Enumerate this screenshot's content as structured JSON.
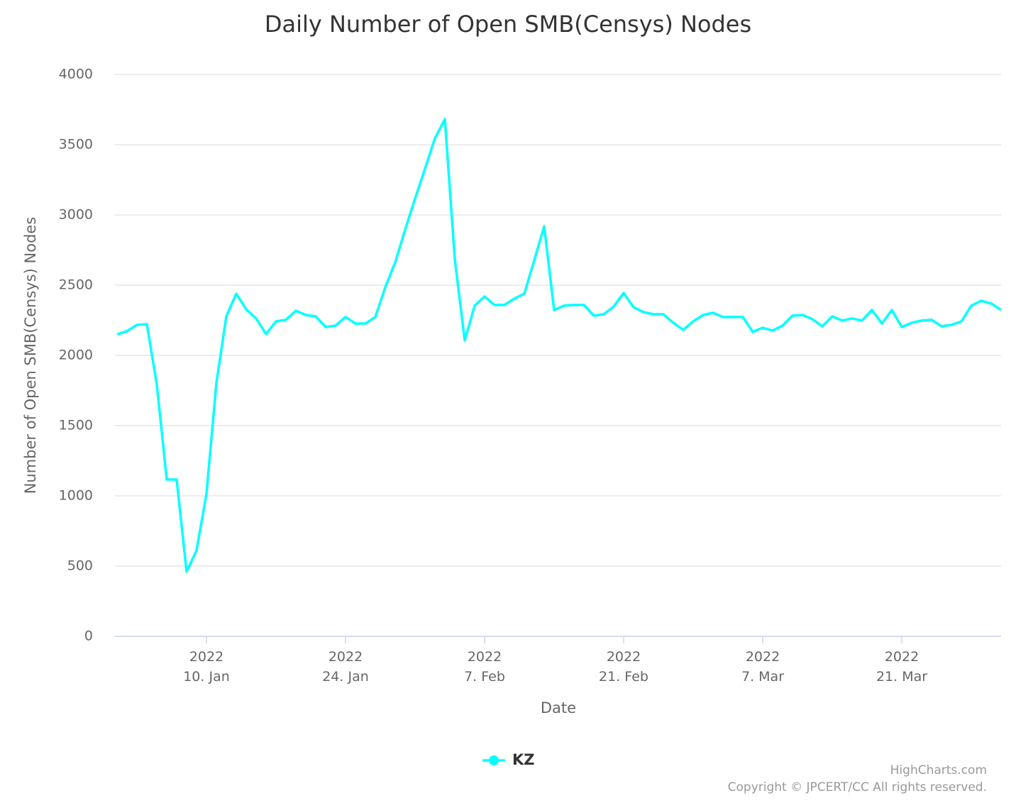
{
  "chart_data": {
    "type": "line",
    "title": "Daily Number of Open SMB(Censys) Nodes",
    "x_label": "Date",
    "y_label": "Number of Open SMB(Censys) Nodes",
    "x": [
      "2022-01-01",
      "2022-01-02",
      "2022-01-03",
      "2022-01-04",
      "2022-01-05",
      "2022-01-06",
      "2022-01-07",
      "2022-01-08",
      "2022-01-09",
      "2022-01-10",
      "2022-01-11",
      "2022-01-12",
      "2022-01-13",
      "2022-01-14",
      "2022-01-15",
      "2022-01-16",
      "2022-01-17",
      "2022-01-18",
      "2022-01-19",
      "2022-01-20",
      "2022-01-21",
      "2022-01-22",
      "2022-01-23",
      "2022-01-24",
      "2022-01-25",
      "2022-01-26",
      "2022-01-27",
      "2022-01-28",
      "2022-01-29",
      "2022-01-30",
      "2022-01-31",
      "2022-02-01",
      "2022-02-02",
      "2022-02-03",
      "2022-02-04",
      "2022-02-05",
      "2022-02-06",
      "2022-02-07",
      "2022-02-08",
      "2022-02-09",
      "2022-02-10",
      "2022-02-11",
      "2022-02-12",
      "2022-02-13",
      "2022-02-14",
      "2022-02-15",
      "2022-02-16",
      "2022-02-17",
      "2022-02-18",
      "2022-02-19",
      "2022-02-20",
      "2022-02-21",
      "2022-02-22",
      "2022-02-23",
      "2022-02-24",
      "2022-02-25",
      "2022-02-26",
      "2022-02-27",
      "2022-02-28",
      "2022-03-01",
      "2022-03-02",
      "2022-03-03",
      "2022-03-04",
      "2022-03-05",
      "2022-03-06",
      "2022-03-07",
      "2022-03-08",
      "2022-03-09",
      "2022-03-10",
      "2022-03-11",
      "2022-03-12",
      "2022-03-13",
      "2022-03-14",
      "2022-03-15",
      "2022-03-16",
      "2022-03-17",
      "2022-03-18",
      "2022-03-19",
      "2022-03-20",
      "2022-03-21",
      "2022-03-22",
      "2022-03-23",
      "2022-03-24",
      "2022-03-25",
      "2022-03-26",
      "2022-03-27",
      "2022-03-28",
      "2022-03-29",
      "2022-03-30",
      "2022-03-31"
    ],
    "series": [
      {
        "name": "KZ",
        "color": "#00ffff",
        "values": [
          2150,
          2172,
          2217,
          2222,
          1793,
          1116,
          1116,
          460,
          611,
          1015,
          1803,
          2278,
          2439,
          2328,
          2263,
          2152,
          2242,
          2253,
          2318,
          2288,
          2278,
          2202,
          2212,
          2273,
          2227,
          2227,
          2273,
          2485,
          2662,
          2894,
          3116,
          3328,
          3545,
          3682,
          2687,
          2106,
          2354,
          2419,
          2359,
          2359,
          2404,
          2439,
          2677,
          2919,
          2323,
          2354,
          2359,
          2359,
          2283,
          2293,
          2348,
          2444,
          2343,
          2308,
          2293,
          2293,
          2232,
          2182,
          2242,
          2288,
          2303,
          2273,
          2273,
          2273,
          2167,
          2197,
          2177,
          2212,
          2283,
          2288,
          2258,
          2207,
          2278,
          2248,
          2263,
          2248,
          2323,
          2227,
          2323,
          2202,
          2232,
          2248,
          2253,
          2207,
          2217,
          2242,
          2354,
          2389,
          2369,
          2323
        ]
      }
    ],
    "xlim": [
      "2022-01-01",
      "2022-03-31"
    ],
    "xticks": [
      {
        "value": "2022-01-10",
        "label": "2022\n10. Jan"
      },
      {
        "value": "2022-01-24",
        "label": "2022\n24. Jan"
      },
      {
        "value": "2022-02-07",
        "label": "2022\n7. Feb"
      },
      {
        "value": "2022-02-21",
        "label": "2022\n21. Feb"
      },
      {
        "value": "2022-03-07",
        "label": "2022\n7. Mar"
      },
      {
        "value": "2022-03-21",
        "label": "2022\n21. Mar"
      }
    ],
    "ylim": [
      0,
      4000
    ],
    "yticks": [
      0,
      500,
      1000,
      1500,
      2000,
      2500,
      3000,
      3500,
      4000
    ],
    "grid": true,
    "legend": "bottom",
    "credits": [
      "HighCharts.com",
      "Copyright © JPCERT/CC All rights reserved."
    ]
  }
}
